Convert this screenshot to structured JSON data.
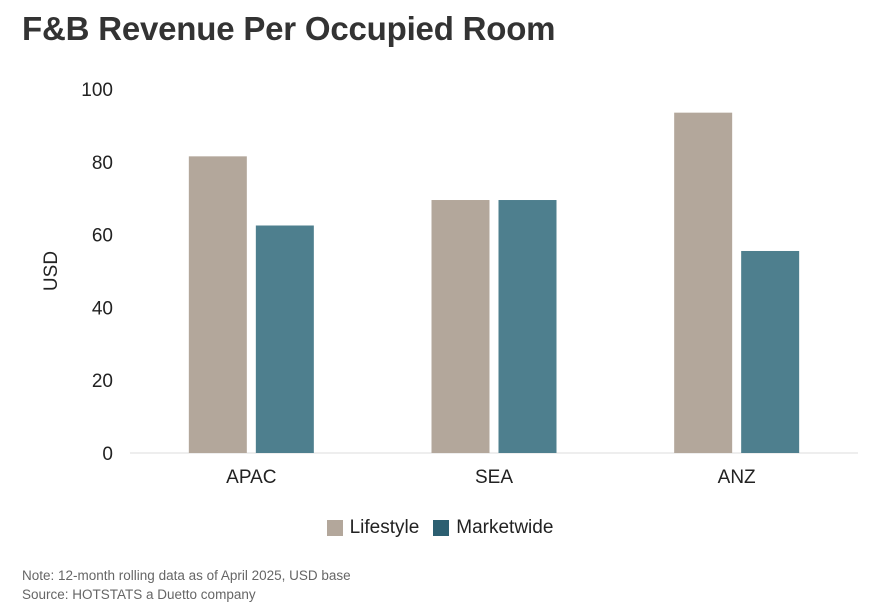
{
  "title": "F&B Revenue Per Occupied Room",
  "chart_data": {
    "type": "bar",
    "categories": [
      "APAC",
      "SEA",
      "ANZ"
    ],
    "series": [
      {
        "name": "Lifestyle",
        "values": [
          81.5,
          69.5,
          93.5
        ],
        "color": "#b3a79b"
      },
      {
        "name": "Marketwide",
        "values": [
          62.5,
          69.5,
          55.5
        ],
        "color": "#4e7f8e"
      }
    ],
    "ylabel": "USD",
    "xlabel": "",
    "ylim": [
      0,
      100
    ],
    "yticks": [
      0,
      20,
      40,
      60,
      80,
      100
    ],
    "grid": false,
    "legend_position": "bottom"
  },
  "legend": {
    "items": [
      {
        "label": "Lifestyle",
        "color": "#b3a79b"
      },
      {
        "label": "Marketwide",
        "color": "#2c5f71"
      }
    ]
  },
  "notes": {
    "note": "Note: 12-month rolling data as of April 2025, USD base",
    "source": "Source: HOTSTATS a Duetto company"
  }
}
